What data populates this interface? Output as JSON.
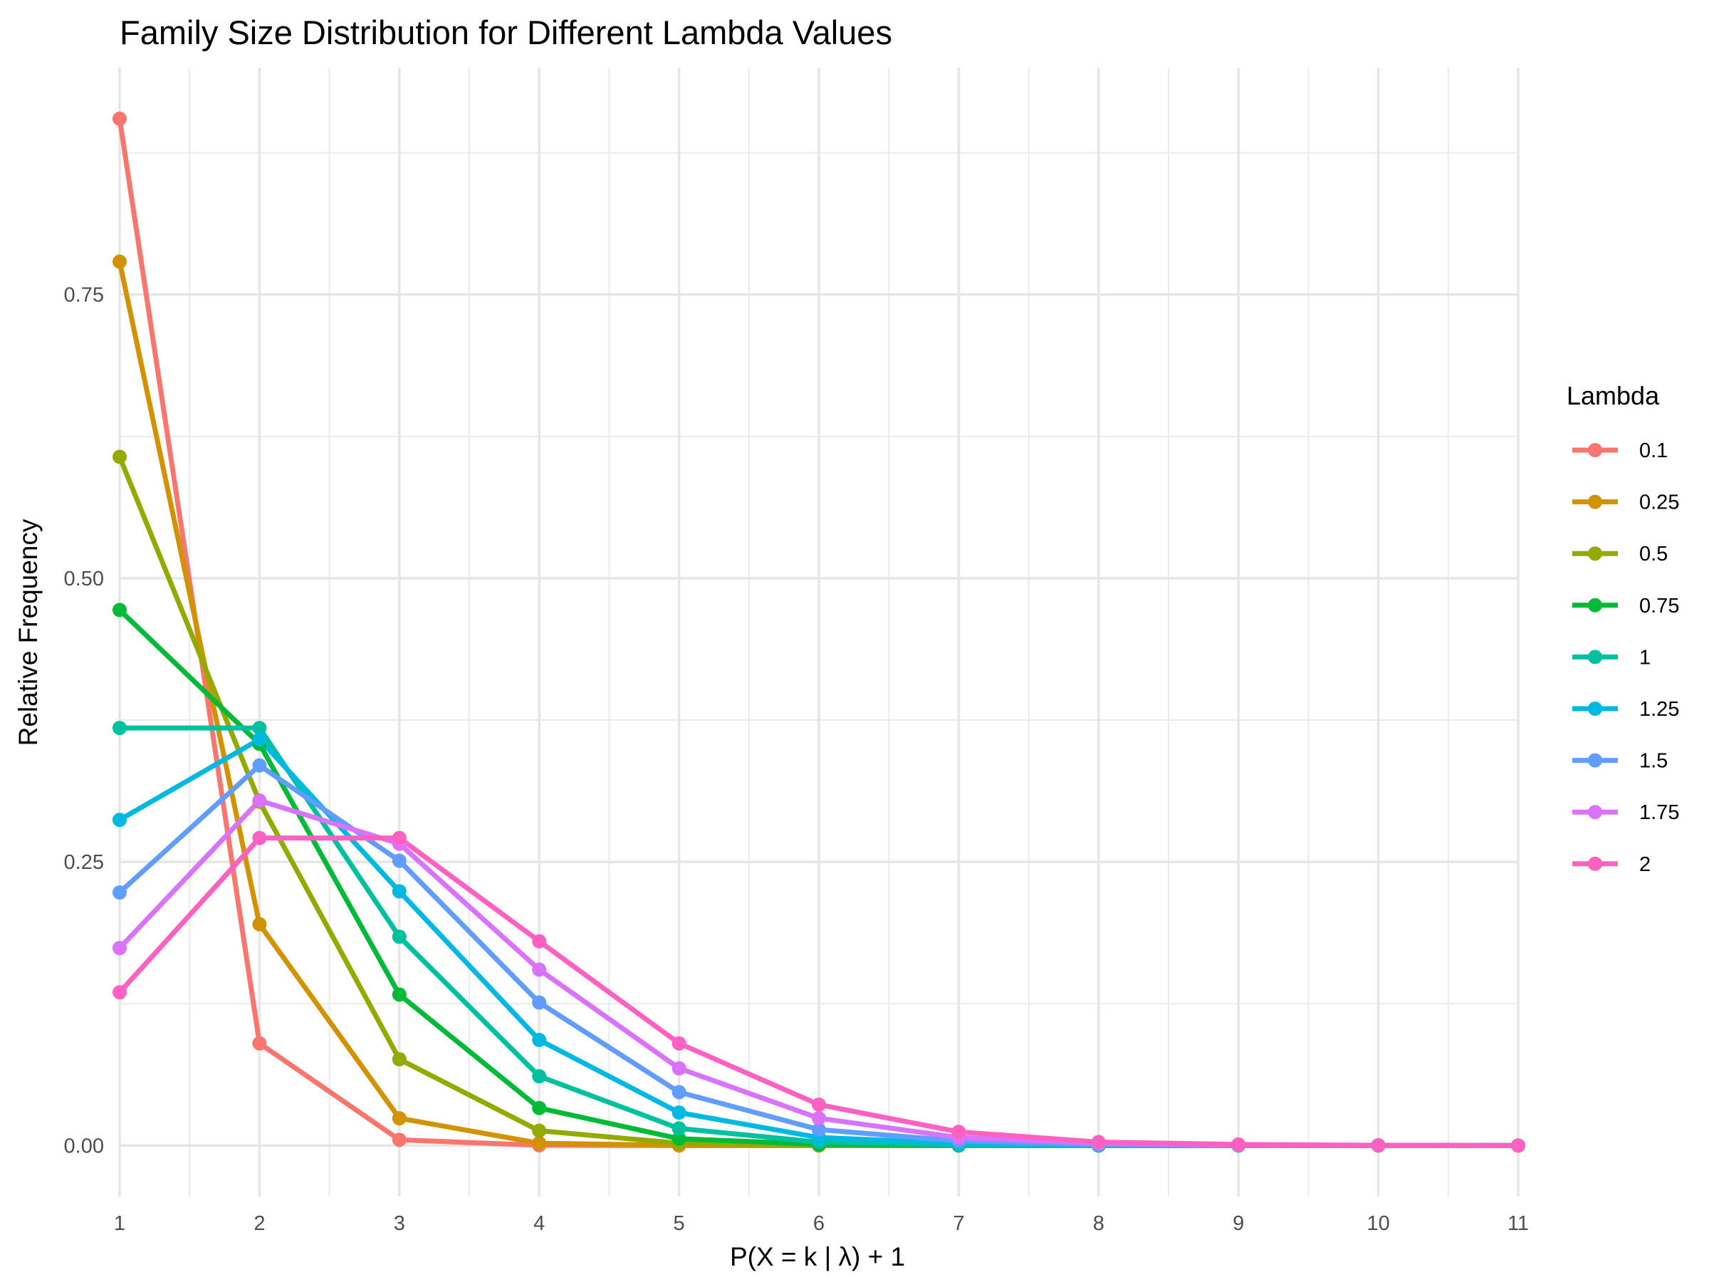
{
  "chart_data": {
    "type": "line",
    "title": "Family Size Distribution for Different Lambda Values",
    "xlabel": "P(X = k | λ) + 1",
    "ylabel": "Relative Frequency",
    "x": [
      1,
      2,
      3,
      4,
      5,
      6,
      7,
      8,
      9,
      10,
      11
    ],
    "x_ticks": [
      "1",
      "2",
      "3",
      "4",
      "5",
      "6",
      "7",
      "8",
      "9",
      "10",
      "11"
    ],
    "y_ticks": [
      "0.00",
      "0.25",
      "0.50",
      "0.75"
    ],
    "xlim": [
      1,
      11
    ],
    "ylim": [
      -0.045,
      0.95
    ],
    "grid": true,
    "legend": {
      "title": "Lambda",
      "position": "right"
    },
    "series": [
      {
        "name": "0.1",
        "color": "#F8766D",
        "values": [
          0.905,
          0.09,
          0.005,
          0.0002,
          0.0,
          0.0,
          0.0,
          0.0,
          0.0,
          0.0,
          0.0
        ]
      },
      {
        "name": "0.25",
        "color": "#D39200",
        "values": [
          0.779,
          0.195,
          0.024,
          0.002,
          0.0001,
          0.0,
          0.0,
          0.0,
          0.0,
          0.0,
          0.0
        ]
      },
      {
        "name": "0.5",
        "color": "#93AA00",
        "values": [
          0.607,
          0.303,
          0.076,
          0.013,
          0.002,
          0.0002,
          0.0,
          0.0,
          0.0,
          0.0,
          0.0
        ]
      },
      {
        "name": "0.75",
        "color": "#00BA38",
        "values": [
          0.472,
          0.354,
          0.133,
          0.033,
          0.006,
          0.001,
          0.0001,
          0.0,
          0.0,
          0.0,
          0.0
        ]
      },
      {
        "name": "1",
        "color": "#00C19F",
        "values": [
          0.368,
          0.368,
          0.184,
          0.061,
          0.015,
          0.003,
          0.0005,
          0.0001,
          0.0,
          0.0,
          0.0
        ]
      },
      {
        "name": "1.25",
        "color": "#00B9E3",
        "values": [
          0.287,
          0.358,
          0.224,
          0.093,
          0.029,
          0.007,
          0.002,
          0.0003,
          0.0,
          0.0,
          0.0
        ]
      },
      {
        "name": "1.5",
        "color": "#619CFF",
        "values": [
          0.223,
          0.335,
          0.251,
          0.126,
          0.047,
          0.014,
          0.004,
          0.0008,
          0.0002,
          0.0,
          0.0
        ]
      },
      {
        "name": "1.75",
        "color": "#DB72FB",
        "values": [
          0.174,
          0.304,
          0.266,
          0.155,
          0.068,
          0.024,
          0.007,
          0.002,
          0.0004,
          0.0001,
          0.0
        ]
      },
      {
        "name": "2",
        "color": "#FF61C3",
        "values": [
          0.135,
          0.271,
          0.271,
          0.18,
          0.09,
          0.036,
          0.012,
          0.003,
          0.0009,
          0.0002,
          0.0
        ]
      }
    ]
  }
}
